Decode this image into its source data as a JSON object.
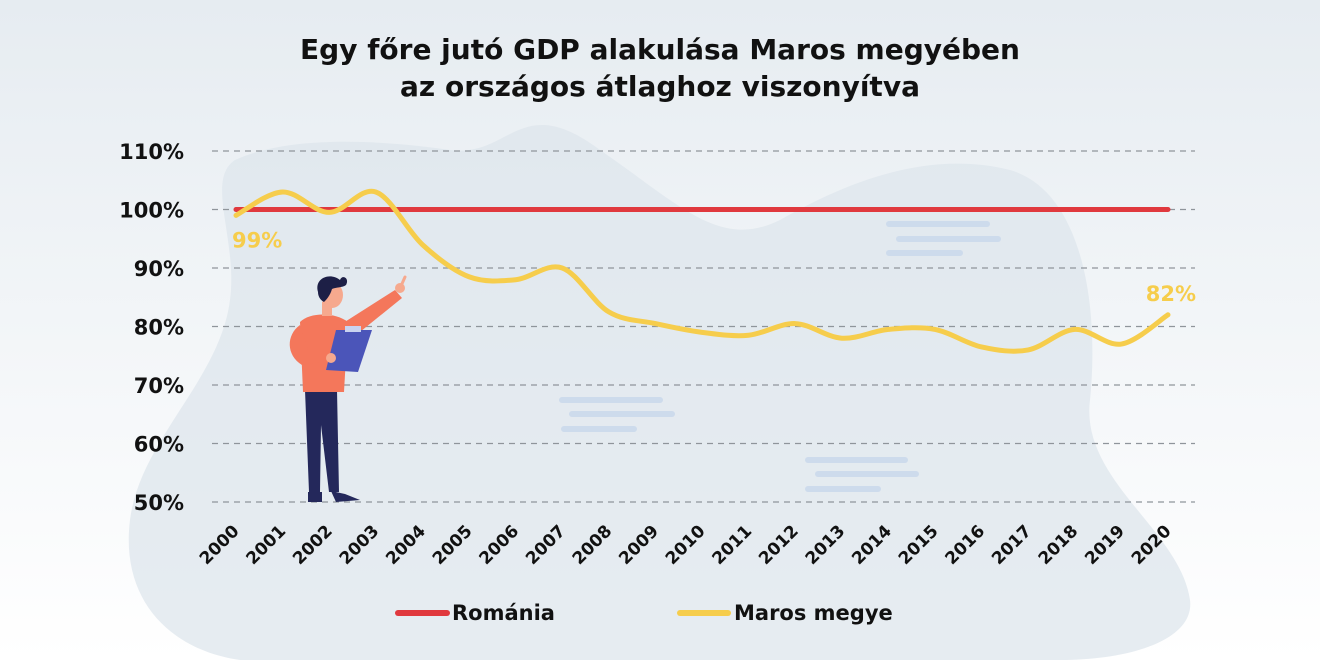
{
  "chart_data": {
    "type": "line",
    "title_lines": [
      "Egy főre jutó GDP alakulása Maros megyében",
      "az országos átlaghoz viszonyítva"
    ],
    "x": [
      "2000",
      "2001",
      "2002",
      "2003",
      "2004",
      "2005",
      "2006",
      "2007",
      "2008",
      "2009",
      "2010",
      "2011",
      "2012",
      "2013",
      "2014",
      "2015",
      "2016",
      "2017",
      "2018",
      "2019",
      "2020"
    ],
    "y_ticks": [
      "50%",
      "60%",
      "70%",
      "80%",
      "90%",
      "100%",
      "110%"
    ],
    "y_tick_values": [
      50,
      60,
      70,
      80,
      90,
      100,
      110
    ],
    "ylim": [
      50,
      110
    ],
    "grid": true,
    "legend_position": "bottom",
    "series": [
      {
        "name": "Románia",
        "color": "#e0393e",
        "values": [
          100,
          100,
          100,
          100,
          100,
          100,
          100,
          100,
          100,
          100,
          100,
          100,
          100,
          100,
          100,
          100,
          100,
          100,
          100,
          100,
          100
        ]
      },
      {
        "name": "Maros megye",
        "color": "#f6cd4c",
        "values": [
          99,
          103,
          99.5,
          103,
          94,
          88.5,
          88,
          90,
          82.5,
          80.5,
          79,
          78.5,
          80.5,
          78,
          79.5,
          79.5,
          76.5,
          76,
          79.5,
          77,
          82
        ]
      }
    ],
    "annotations": [
      {
        "text": "99%",
        "series": "Maros megye",
        "x": "2000",
        "value": 99
      },
      {
        "text": "82%",
        "series": "Maros megye",
        "x": "2020",
        "value": 82
      }
    ]
  },
  "illustration": {
    "description_icon": "person-pointing-with-clipboard-icon"
  }
}
